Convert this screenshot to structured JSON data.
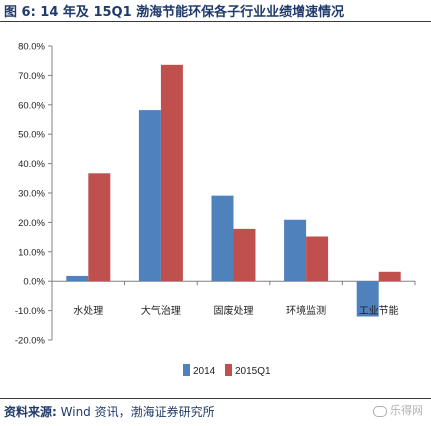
{
  "header": {
    "title": "图 6:  14 年及 15Q1 渤海节能环保各子行业业绩增速情况"
  },
  "footer": {
    "source_label": "资料来源:",
    "source_text": "Wind 资讯，渤海证券研究所",
    "watermark": "乐得网"
  },
  "colors": {
    "series_2014": "#4f81bd",
    "series_2015q1": "#c0504d",
    "axis": "#808080",
    "text": "#1f3a6b"
  },
  "chart_data": {
    "type": "bar",
    "categories": [
      "水处理",
      "大气治理",
      "固废处理",
      "环境监测",
      "工业节能"
    ],
    "series": [
      {
        "name": "2014",
        "values": [
          1.8,
          58.2,
          29.1,
          20.9,
          -12.0
        ]
      },
      {
        "name": "2015Q1",
        "values": [
          36.7,
          73.6,
          17.8,
          15.2,
          3.2
        ]
      }
    ],
    "ylim": [
      -20,
      80
    ],
    "yticks": [
      "-20.0%",
      "-10.0%",
      "0.0%",
      "10.0%",
      "20.0%",
      "30.0%",
      "40.0%",
      "50.0%",
      "60.0%",
      "70.0%",
      "80.0%"
    ],
    "ytick_values": [
      -20,
      -10,
      0,
      10,
      20,
      30,
      40,
      50,
      60,
      70,
      80
    ],
    "xlabel": "",
    "ylabel": "",
    "legend": "bottom-center",
    "grid": false
  }
}
